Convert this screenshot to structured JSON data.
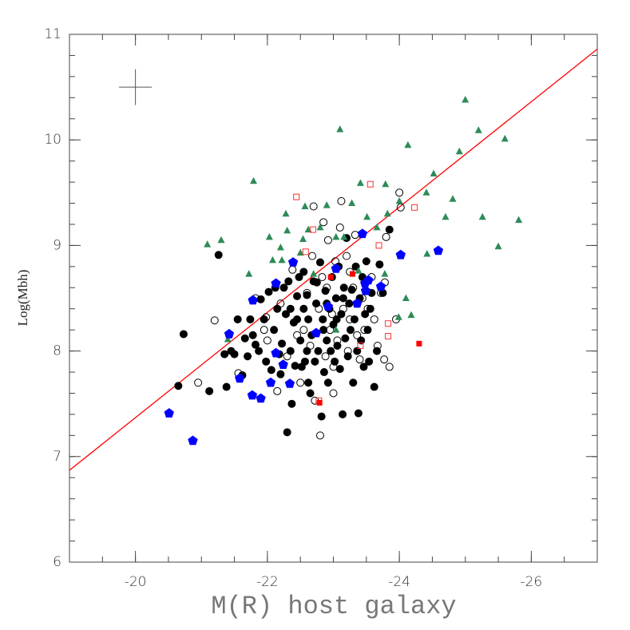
{
  "chart_data": {
    "type": "scatter",
    "xlabel": "M(R) host galaxy",
    "ylabel": "Log(Mbh)",
    "xlim": [
      -19,
      -27
    ],
    "ylim": [
      6,
      11
    ],
    "xticks": [
      -20,
      -22,
      -24,
      -26
    ],
    "yticks": [
      6,
      7,
      8,
      9,
      10,
      11
    ],
    "minor_ticks": {
      "x": 0.5,
      "y": 0.2
    },
    "error_bar": {
      "x": -20,
      "y": 10.5,
      "xerr": 0.25,
      "yerr": 0.17,
      "color": "#555555"
    },
    "fit_line": {
      "x": [
        -19,
        -27
      ],
      "values": [
        6.87,
        10.86
      ],
      "color": "#ff0000"
    },
    "series": [
      {
        "color": "#000000",
        "marker": "circle-filled",
        "x": [
          -20.65,
          -20.73,
          -21.12,
          -21.26,
          -21.35,
          -21.38,
          -21.5,
          -21.55,
          -21.62,
          -21.66,
          -21.7,
          -21.74,
          -21.78,
          -21.82,
          -21.87,
          -21.9,
          -21.95,
          -21.98,
          -22.02,
          -22.06,
          -22.1,
          -22.12,
          -22.15,
          -22.2,
          -22.22,
          -22.25,
          -22.28,
          -22.3,
          -22.32,
          -22.35,
          -22.37,
          -22.4,
          -22.42,
          -22.45,
          -22.48,
          -22.5,
          -22.52,
          -22.55,
          -22.57,
          -22.6,
          -22.62,
          -22.65,
          -22.67,
          -22.7,
          -22.72,
          -22.74,
          -22.77,
          -22.8,
          -22.82,
          -22.84,
          -22.86,
          -22.88,
          -22.9,
          -22.92,
          -22.94,
          -22.96,
          -22.98,
          -23.0,
          -23.02,
          -23.04,
          -23.06,
          -23.08,
          -23.1,
          -23.12,
          -23.14,
          -23.16,
          -23.18,
          -23.2,
          -23.22,
          -23.24,
          -23.26,
          -23.28,
          -23.3,
          -23.32,
          -23.34,
          -23.36,
          -23.38,
          -23.4,
          -23.42,
          -23.44,
          -23.46,
          -23.48,
          -23.5,
          -23.52,
          -23.54,
          -23.56,
          -23.58,
          -23.62,
          -23.66,
          -23.7,
          -23.75,
          -23.85,
          -22.85,
          -22.6,
          -22.45,
          -22.9,
          -23.05,
          -22.75,
          -22.55,
          -23.15,
          -22.35,
          -22.05,
          -21.45,
          -22.18,
          -22.62
        ],
        "values": [
          7.67,
          8.16,
          7.62,
          8.91,
          7.97,
          7.66,
          7.97,
          8.3,
          7.77,
          8.12,
          7.95,
          8.3,
          8.15,
          8.06,
          8.0,
          8.49,
          8.3,
          7.9,
          8.56,
          7.82,
          8.2,
          8.6,
          8.4,
          7.78,
          8.07,
          8.6,
          8.35,
          7.23,
          8.66,
          8.0,
          7.5,
          8.27,
          7.86,
          8.52,
          8.7,
          8.1,
          7.85,
          8.4,
          7.9,
          8.53,
          8.3,
          7.6,
          8.15,
          8.66,
          7.9,
          8.45,
          8.0,
          8.84,
          7.38,
          8.3,
          7.8,
          8.57,
          8.1,
          7.7,
          8.4,
          8.0,
          8.7,
          8.25,
          7.9,
          8.5,
          8.05,
          8.8,
          7.83,
          8.35,
          7.4,
          8.6,
          8.12,
          9.07,
          7.95,
          8.45,
          8.2,
          8.58,
          7.7,
          8.3,
          8.8,
          8.0,
          7.41,
          8.5,
          8.1,
          8.7,
          7.85,
          8.35,
          8.85,
          8.2,
          7.9,
          8.4,
          8.55,
          7.66,
          8.0,
          8.82,
          8.55,
          9.15,
          8.2,
          8.0,
          8.3,
          8.45,
          8.3,
          8.65,
          8.75,
          8.5,
          8.4,
          7.7,
          8.0,
          7.97,
          7.7
        ]
      },
      {
        "color": "#000000",
        "marker": "circle-open",
        "x": [
          -20.95,
          -21.2,
          -21.56,
          -21.82,
          -21.95,
          -22.0,
          -22.15,
          -22.3,
          -22.38,
          -22.5,
          -22.55,
          -22.6,
          -22.65,
          -22.7,
          -22.72,
          -22.78,
          -22.8,
          -22.83,
          -22.85,
          -22.88,
          -22.92,
          -22.95,
          -22.98,
          -23.0,
          -23.03,
          -23.06,
          -23.1,
          -23.12,
          -23.15,
          -23.2,
          -23.22,
          -23.25,
          -23.3,
          -23.33,
          -23.36,
          -23.4,
          -23.44,
          -23.47,
          -23.52,
          -23.58,
          -23.62,
          -23.67,
          -23.72,
          -23.78,
          -23.8,
          -23.85,
          -23.95,
          -24.0,
          -24.02,
          -23.77,
          -22.45,
          -22.2,
          -21.98,
          -22.68,
          -23.0,
          -23.25,
          -22.9
        ],
        "values": [
          7.7,
          8.29,
          7.79,
          8.5,
          8.2,
          8.1,
          7.62,
          7.95,
          8.77,
          7.7,
          8.2,
          8.55,
          8.05,
          9.37,
          7.53,
          8.4,
          7.2,
          8.7,
          9.22,
          7.95,
          9.05,
          8.2,
          8.35,
          7.6,
          8.85,
          8.1,
          9.17,
          9.42,
          8.4,
          8.9,
          8.0,
          8.3,
          8.6,
          9.1,
          8.15,
          7.92,
          8.5,
          8.2,
          8.4,
          8.7,
          8.3,
          8.05,
          8.55,
          8.65,
          9.08,
          7.85,
          8.3,
          9.5,
          9.36,
          7.92,
          8.15,
          8.45,
          8.32,
          8.9,
          7.85,
          8.75,
          8.6
        ]
      },
      {
        "color": "#2e8b57",
        "marker": "triangle",
        "x": [
          -21.09,
          -21.3,
          -21.79,
          -23.1,
          -24.13,
          -25.0,
          -25.2,
          -25.6,
          -24.91,
          -24.52,
          -24.41,
          -24.81,
          -24.7,
          -24.0,
          -23.82,
          -23.51,
          -23.41,
          -23.79,
          -25.26,
          -25.81,
          -25.5,
          -23.66,
          -22.57,
          -22.28,
          -22.9,
          -23.28,
          -22.3,
          -22.62,
          -22.8,
          -23.04,
          -23.16,
          -22.03,
          -22.2,
          -22.5,
          -22.08,
          -22.22,
          -22.7,
          -23.38,
          -23.78,
          -24.1,
          -24.18,
          -23.99,
          -24.42,
          -21.72,
          -21.4,
          -23.04,
          -22.54
        ],
        "values": [
          9.01,
          9.05,
          9.61,
          10.1,
          9.95,
          10.38,
          10.09,
          10.01,
          9.89,
          9.68,
          9.5,
          9.44,
          9.27,
          9.42,
          9.3,
          9.27,
          9.59,
          9.58,
          9.27,
          9.24,
          8.99,
          9.17,
          9.37,
          9.3,
          9.38,
          9.4,
          9.14,
          9.15,
          9.17,
          9.08,
          9.08,
          9.08,
          8.98,
          8.93,
          8.86,
          8.86,
          8.73,
          8.76,
          8.73,
          8.5,
          8.34,
          8.32,
          8.92,
          8.73,
          8.11,
          8.2,
          9.06
        ]
      },
      {
        "color": "#0000ff",
        "marker": "pentagon",
        "x": [
          -20.51,
          -20.87,
          -21.42,
          -21.78,
          -22.13,
          -22.13,
          -22.39,
          -22.05,
          -21.58,
          -21.77,
          -21.9,
          -22.34,
          -22.24,
          -22.92,
          -23.04,
          -22.74,
          -23.36,
          -23.44,
          -23.48,
          -23.49,
          -23.72,
          -24.02,
          -24.59,
          -23.53
        ],
        "values": [
          7.41,
          7.15,
          8.16,
          8.48,
          7.98,
          8.64,
          8.84,
          7.7,
          7.74,
          7.58,
          7.55,
          7.69,
          7.87,
          8.42,
          8.78,
          8.17,
          8.45,
          9.11,
          8.64,
          8.57,
          8.61,
          8.91,
          8.95,
          8.67
        ]
      },
      {
        "color": "#ff3030",
        "marker": "square-open",
        "x": [
          -22.44,
          -23.56,
          -24.23,
          -22.69,
          -23.69,
          -22.58,
          -23.83,
          -23.83,
          -23.41,
          -22.78
        ],
        "values": [
          9.46,
          9.58,
          9.36,
          9.15,
          9.0,
          8.94,
          8.26,
          8.14,
          8.05,
          7.53
        ]
      },
      {
        "color": "#ff0000",
        "marker": "square-filled",
        "x": [
          -22.96,
          -23.29,
          -24.3,
          -22.79
        ],
        "values": [
          8.7,
          8.73,
          8.07,
          7.51
        ]
      }
    ]
  }
}
